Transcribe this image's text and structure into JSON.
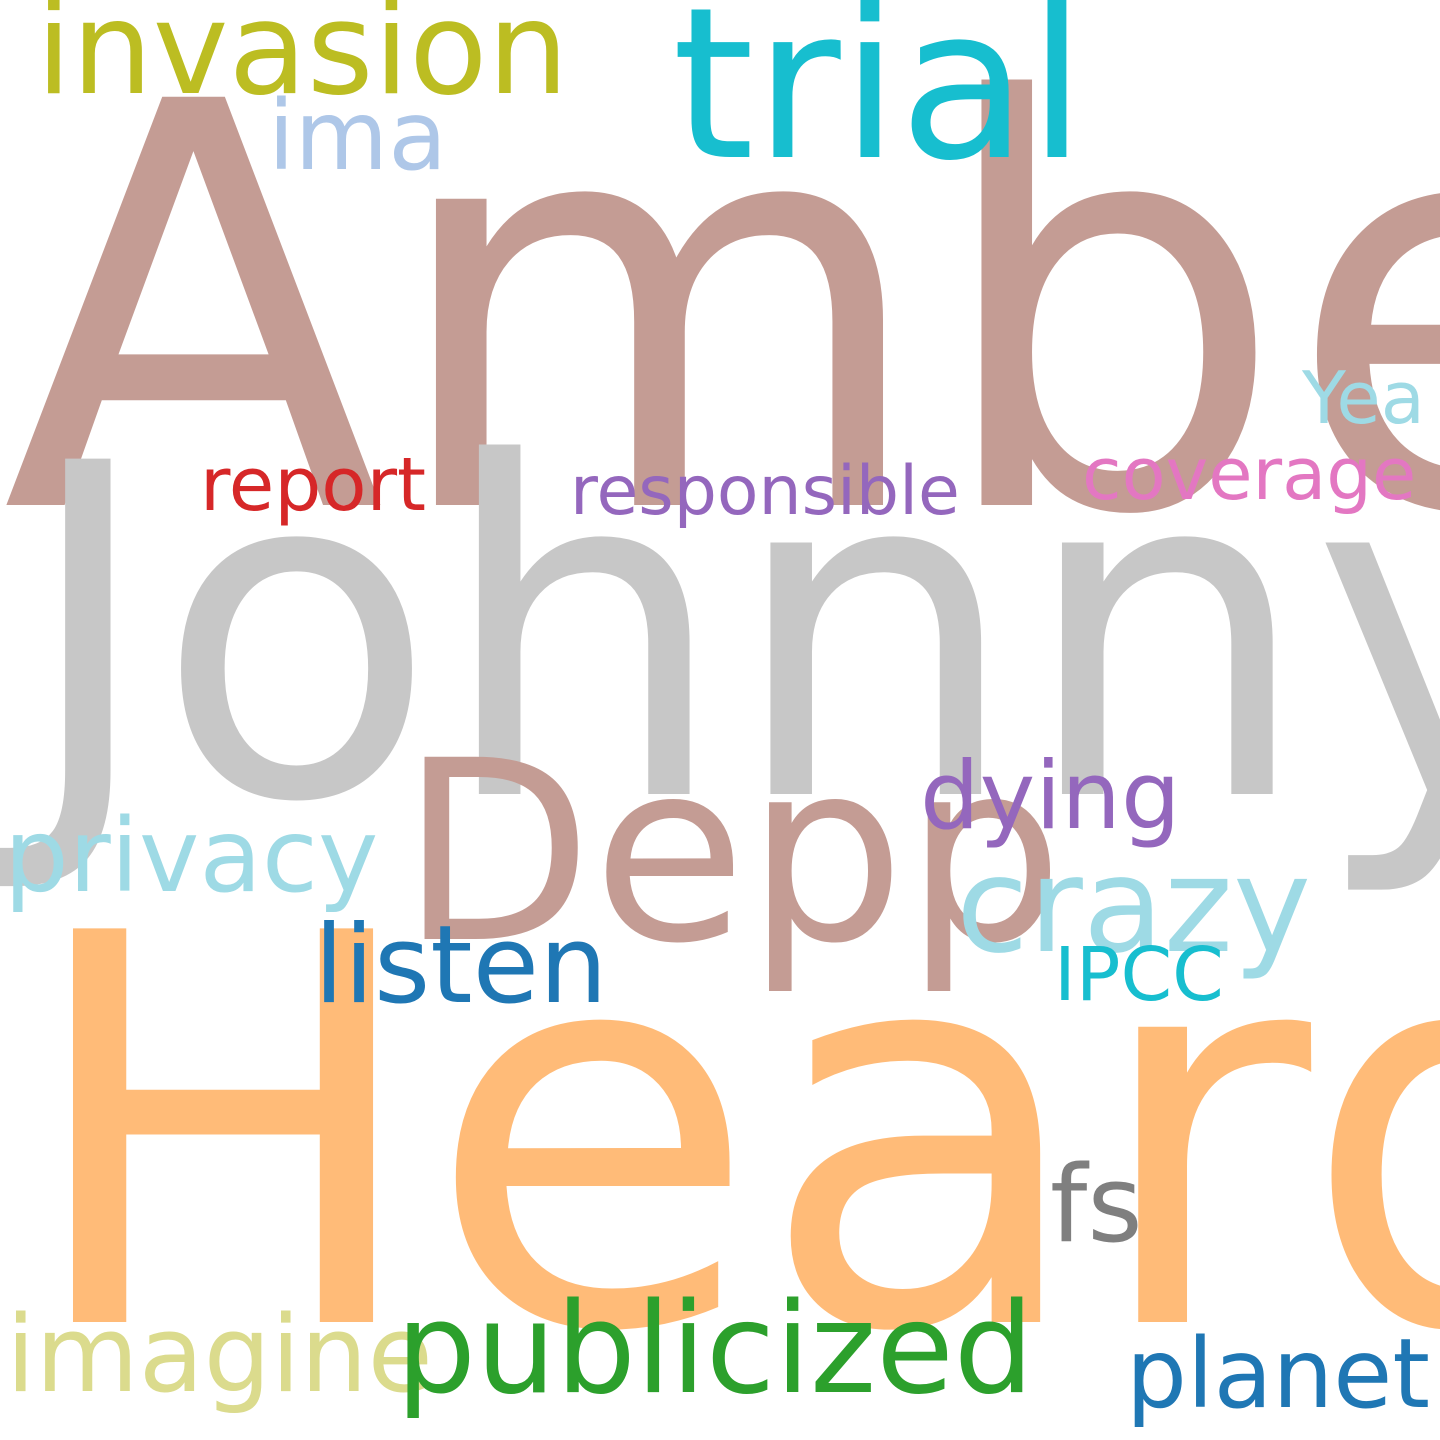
{
  "words": {
    "amber": {
      "text": "Amber",
      "color": "#c49c94"
    },
    "johnny": {
      "text": "Johnny",
      "color": "#c7c7c7"
    },
    "heard": {
      "text": "Heard",
      "color": "#ffbb78"
    },
    "trial": {
      "text": "trial",
      "color": "#17becf"
    },
    "invasion": {
      "text": "invasion",
      "color": "#bcbd22"
    },
    "ima": {
      "text": "ima",
      "color": "#aec7e8"
    },
    "depp": {
      "text": "Depp",
      "color": "#c49c94"
    },
    "report": {
      "text": "report",
      "color": "#d62728"
    },
    "responsible": {
      "text": "responsible",
      "color": "#9467bd"
    },
    "coverage": {
      "text": "coverage",
      "color": "#e377c2"
    },
    "yea": {
      "text": "Yea",
      "color": "#9edae5"
    },
    "dying": {
      "text": "dying",
      "color": "#9467bd"
    },
    "privacy": {
      "text": "privacy",
      "color": "#9edae5"
    },
    "crazy": {
      "text": "crazy",
      "color": "#9edae5"
    },
    "listen": {
      "text": "listen",
      "color": "#1f77b4"
    },
    "ipcc": {
      "text": "IPCC",
      "color": "#17becf"
    },
    "fs": {
      "text": "fs",
      "color": "#7f7f7f"
    },
    "imagine": {
      "text": "imagine",
      "color": "#dbdb8d"
    },
    "publicized": {
      "text": "publicized",
      "color": "#2ca02c"
    },
    "planet": {
      "text": "planet",
      "color": "#1f77b4"
    }
  }
}
